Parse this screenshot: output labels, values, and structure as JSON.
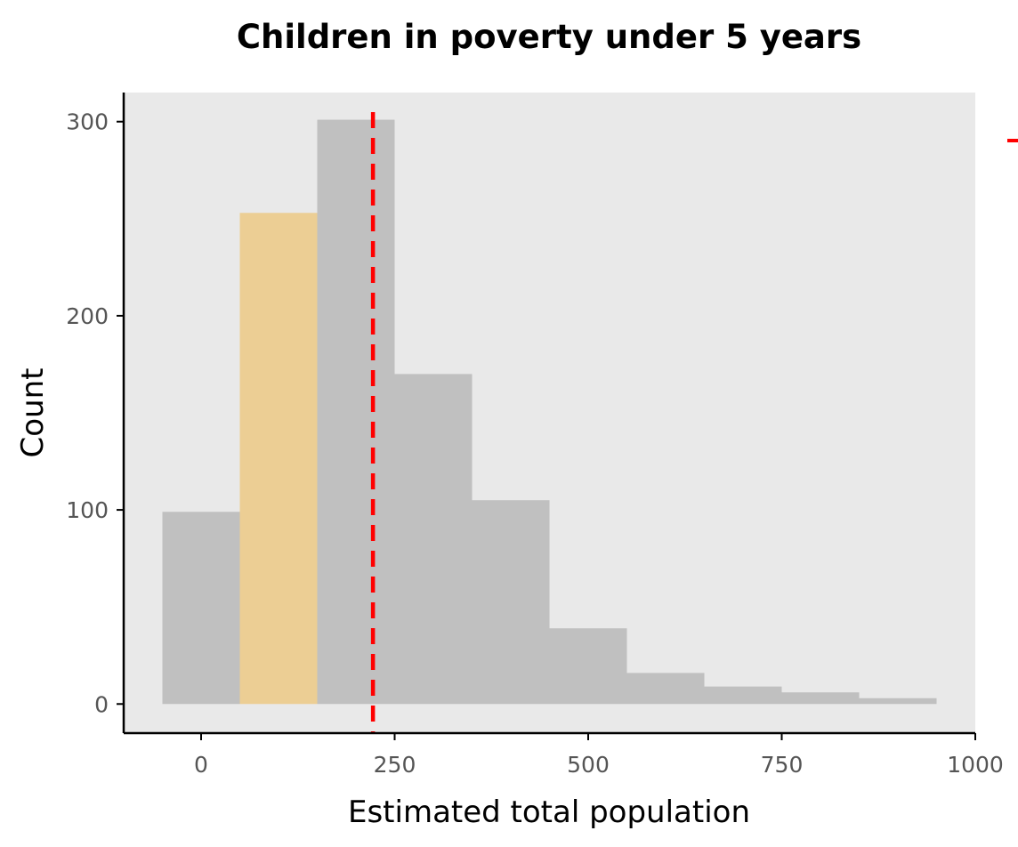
{
  "chart_data": {
    "type": "bar",
    "title": "Children in poverty under 5 years",
    "xlabel": "Estimated total population",
    "ylabel": "Count",
    "xlim": [
      -100,
      1000
    ],
    "ylim": [
      -15,
      315
    ],
    "x_ticks": [
      "0",
      "250",
      "500",
      "750",
      "1000"
    ],
    "y_ticks": [
      "0",
      "100",
      "200",
      "300"
    ],
    "bins": [
      {
        "start": -50,
        "end": 50,
        "count": 99,
        "highlight": false
      },
      {
        "start": 50,
        "end": 150,
        "count": 253,
        "highlight": true
      },
      {
        "start": 150,
        "end": 250,
        "count": 301,
        "highlight": false
      },
      {
        "start": 250,
        "end": 350,
        "count": 170,
        "highlight": false
      },
      {
        "start": 350,
        "end": 450,
        "count": 105,
        "highlight": false
      },
      {
        "start": 450,
        "end": 550,
        "count": 39,
        "highlight": false
      },
      {
        "start": 550,
        "end": 650,
        "count": 16,
        "highlight": false
      },
      {
        "start": 650,
        "end": 750,
        "count": 9,
        "highlight": false
      },
      {
        "start": 750,
        "end": 850,
        "count": 6,
        "highlight": false
      },
      {
        "start": 850,
        "end": 950,
        "count": 3,
        "highlight": false
      }
    ],
    "reference_line": {
      "x": 222,
      "style": "dashed"
    },
    "grid": false,
    "colors": {
      "panel_background": "#e9e9e9",
      "bar": "#c0c0c0",
      "bar_highlight": "#ecce94",
      "reference_line": "#ff0000"
    }
  }
}
